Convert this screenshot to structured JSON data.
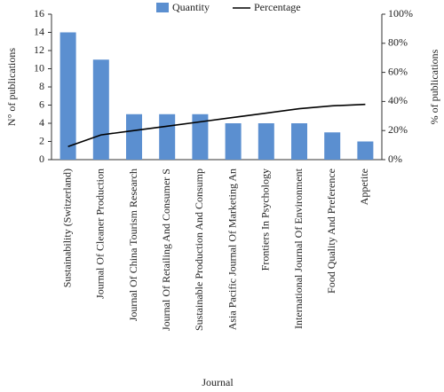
{
  "chart_data": {
    "type": "bar",
    "xlabel": "Journal",
    "ylabel": "N° of publications",
    "y2label": "% of publications",
    "categories": [
      "Sustainability (Switzerland)",
      "Journal Of Cleaner Production",
      "Journal Of China Tourism Research",
      "Journal Of Retailing And Consumer S",
      "Sustainable Production And Consump",
      "Asia Pacific Journal Of Marketing An",
      "Frontiers In Psychology",
      "International Journal Of Environment",
      "Food Quality And Preference",
      "Appetite"
    ],
    "series": [
      {
        "name": "Quantity",
        "type": "bar",
        "color": "#5b8fd0",
        "values": [
          14,
          11,
          5,
          5,
          5,
          4,
          4,
          4,
          3,
          2
        ]
      },
      {
        "name": "Percentage",
        "type": "line",
        "color": "#000000",
        "axis": "y2",
        "values": [
          9,
          17,
          20,
          23,
          26,
          29,
          32,
          35,
          37,
          38
        ]
      }
    ],
    "ylim": [
      0,
      16
    ],
    "yticks": [
      0,
      2,
      4,
      6,
      8,
      10,
      12,
      14,
      16
    ],
    "y2lim": [
      0,
      100
    ],
    "y2ticks": [
      {
        "value": 0,
        "label": "0%"
      },
      {
        "value": 20,
        "label": "20%"
      },
      {
        "value": 40,
        "label": "40%"
      },
      {
        "value": 60,
        "label": "60%"
      },
      {
        "value": 80,
        "label": "80%"
      },
      {
        "value": 100,
        "label": "100%"
      }
    ],
    "grid": false,
    "legend": "top"
  }
}
